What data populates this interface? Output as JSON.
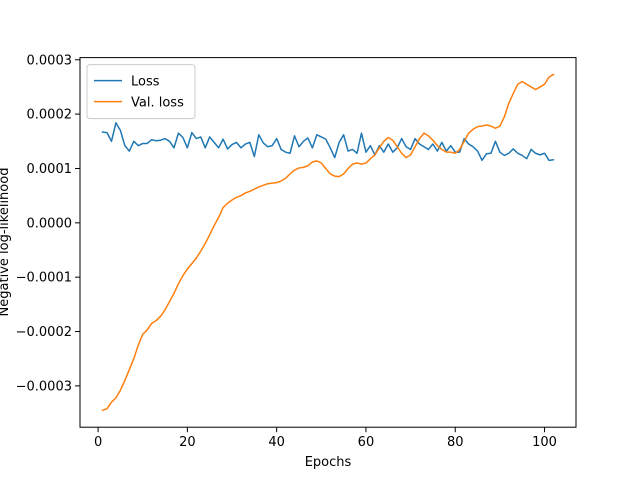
{
  "chart_data": {
    "type": "line",
    "xlabel": "Epochs",
    "ylabel": "Negative log-likelihood",
    "x": [
      1,
      2,
      3,
      4,
      5,
      6,
      7,
      8,
      9,
      10,
      11,
      12,
      13,
      14,
      15,
      16,
      17,
      18,
      19,
      20,
      21,
      22,
      23,
      24,
      25,
      26,
      27,
      28,
      29,
      30,
      31,
      32,
      33,
      34,
      35,
      36,
      37,
      38,
      39,
      40,
      41,
      42,
      43,
      44,
      45,
      46,
      47,
      48,
      49,
      50,
      51,
      52,
      53,
      54,
      55,
      56,
      57,
      58,
      59,
      60,
      61,
      62,
      63,
      64,
      65,
      66,
      67,
      68,
      69,
      70,
      71,
      72,
      73,
      74,
      75,
      76,
      77,
      78,
      79,
      80,
      81,
      82,
      83,
      84,
      85,
      86,
      87,
      88,
      89,
      90,
      91,
      92,
      93,
      94,
      95,
      96,
      97,
      98,
      99,
      100,
      101,
      102
    ],
    "series": [
      {
        "name": "Loss",
        "color": "#1f77b4",
        "values": [
          0.000167,
          0.000166,
          0.00015,
          0.000184,
          0.00017,
          0.000142,
          0.000132,
          0.00015,
          0.000142,
          0.000146,
          0.000146,
          0.000153,
          0.000151,
          0.000152,
          0.000155,
          0.00015,
          0.000138,
          0.000165,
          0.000157,
          0.000138,
          0.000166,
          0.000155,
          0.000158,
          0.000138,
          0.000158,
          0.000148,
          0.000138,
          0.000154,
          0.000136,
          0.000144,
          0.000148,
          0.000138,
          0.000145,
          0.000148,
          0.000122,
          0.000162,
          0.000147,
          0.00014,
          0.000142,
          0.000155,
          0.000135,
          0.00013,
          0.000128,
          0.00016,
          0.00014,
          0.00015,
          0.000156,
          0.000138,
          0.000162,
          0.000158,
          0.000154,
          0.000138,
          0.00012,
          0.000148,
          0.000162,
          0.000132,
          0.000135,
          0.000128,
          0.000165,
          0.00013,
          0.000142,
          0.000125,
          0.000142,
          0.00013,
          0.000145,
          0.00013,
          0.000138,
          0.000155,
          0.00014,
          0.000135,
          0.000155,
          0.000145,
          0.00014,
          0.000135,
          0.000145,
          0.000132,
          0.000148,
          0.000132,
          0.000142,
          0.00013,
          0.00013,
          0.000155,
          0.000145,
          0.00014,
          0.000132,
          0.000115,
          0.000127,
          0.000128,
          0.00015,
          0.00013,
          0.000124,
          0.000128,
          0.000136,
          0.000128,
          0.000124,
          0.000118,
          0.000135,
          0.000128,
          0.000125,
          0.000128,
          0.000115,
          0.000116
        ]
      },
      {
        "name": "Val. loss",
        "color": "#ff7f0e",
        "values": [
          -0.000345,
          -0.000342,
          -0.00033,
          -0.000322,
          -0.000308,
          -0.00029,
          -0.00027,
          -0.00025,
          -0.000225,
          -0.000205,
          -0.000197,
          -0.000185,
          -0.00018,
          -0.000172,
          -0.00016,
          -0.000145,
          -0.00013,
          -0.000112,
          -9.7e-05,
          -8.5e-05,
          -7.5e-05,
          -6.5e-05,
          -5.2e-05,
          -3.8e-05,
          -2.2e-05,
          -5e-06,
          1e-05,
          2.8e-05,
          3.6e-05,
          4.2e-05,
          4.7e-05,
          5e-05,
          5.5e-05,
          5.8e-05,
          6.2e-05,
          6.6e-05,
          6.9e-05,
          7.2e-05,
          7.3e-05,
          7.4e-05,
          7.7e-05,
          8.2e-05,
          9e-05,
          9.7e-05,
          0.000101,
          0.000102,
          0.000105,
          0.000112,
          0.000114,
          0.00011,
          0.0001,
          9e-05,
          8.6e-05,
          8.5e-05,
          9e-05,
          0.0001,
          0.000108,
          0.00011,
          0.000108,
          0.00011,
          0.000118,
          0.000125,
          0.000138,
          0.00015,
          0.000157,
          0.000152,
          0.00014,
          0.000128,
          0.00012,
          0.000125,
          0.00014,
          0.000155,
          0.000165,
          0.00016,
          0.000152,
          0.000142,
          0.000135,
          0.00013,
          0.00013,
          0.000128,
          0.000135,
          0.00015,
          0.000165,
          0.000172,
          0.000177,
          0.000178,
          0.00018,
          0.000178,
          0.000174,
          0.000178,
          0.000195,
          0.00022,
          0.000238,
          0.000255,
          0.00026,
          0.000255,
          0.00025,
          0.000245,
          0.00025,
          0.000255,
          0.000268,
          0.000273
        ]
      }
    ],
    "xlim": [
      -4.05,
      107.05
    ],
    "ylim": [
      -0.000376,
      0.000304
    ],
    "xticks": [
      0,
      20,
      40,
      60,
      80,
      100
    ],
    "yticks": [
      {
        "value": -0.0003,
        "label": "−0.0003"
      },
      {
        "value": -0.0002,
        "label": "−0.0002"
      },
      {
        "value": -0.0001,
        "label": "−0.0001"
      },
      {
        "value": 0,
        "label": "0.0000"
      },
      {
        "value": 0.0001,
        "label": "0.0001"
      },
      {
        "value": 0.0002,
        "label": "0.0002"
      },
      {
        "value": 0.0003,
        "label": "0.0003"
      }
    ],
    "grid": false,
    "legend": "upper left"
  }
}
